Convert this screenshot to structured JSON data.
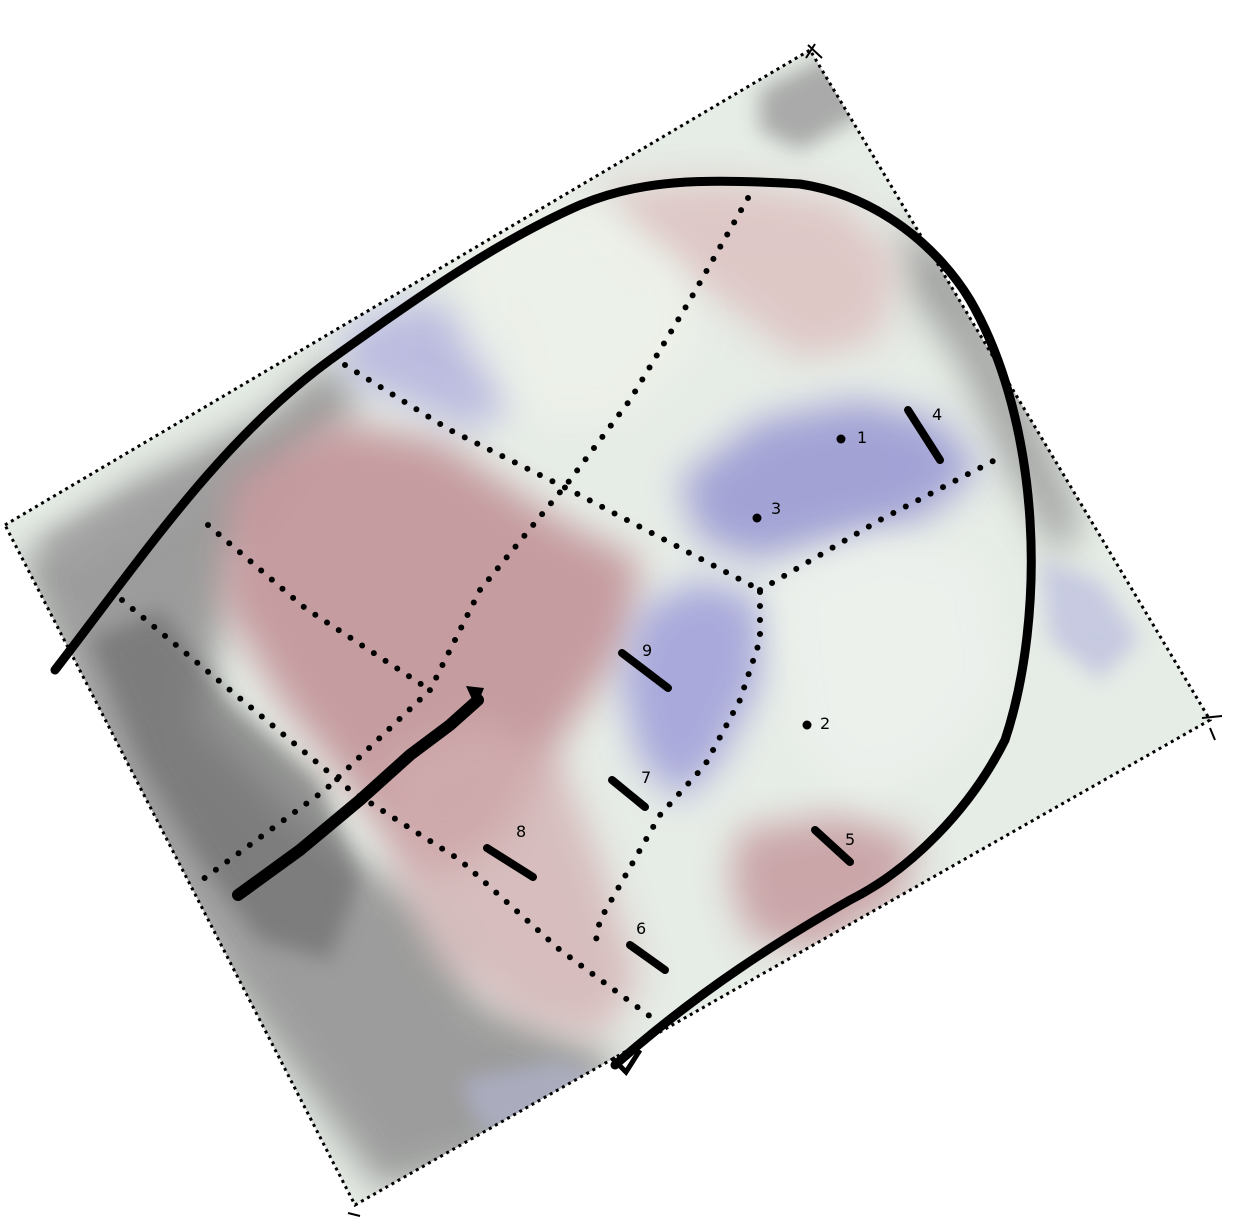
{
  "colors": {
    "background": "#ffffff",
    "gray_region": "#8f8f8f",
    "red_region": "#c9a2a4",
    "blue_region": "#a4a3d6",
    "pale_region": "#e9eee8",
    "outline": "#000000"
  },
  "markers": {
    "m1": "1",
    "m2": "2",
    "m3": "3",
    "m4": "4",
    "m5": "5",
    "m6": "6",
    "m7": "7",
    "m8": "8",
    "m9": "9"
  }
}
